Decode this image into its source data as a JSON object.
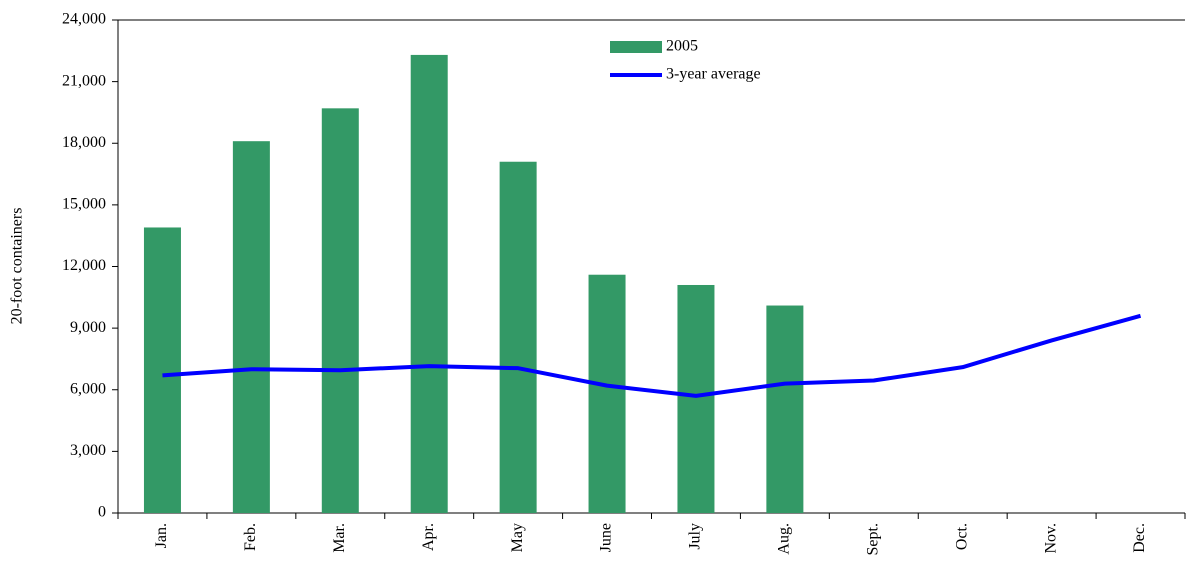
{
  "chart_data": {
    "type": "bar-line",
    "y_label": "20-foot containers",
    "categories": [
      "Jan.",
      "Feb.",
      "Mar.",
      "Apr.",
      "May",
      "June",
      "July",
      "Aug.",
      "Sept.",
      "Oct.",
      "Nov.",
      "Dec."
    ],
    "series": [
      {
        "name": "2005",
        "type": "bar",
        "color": "#339966",
        "values": [
          13900,
          18100,
          19700,
          22300,
          17100,
          11600,
          11100,
          10100,
          null,
          null,
          null,
          null
        ]
      },
      {
        "name": "3-year average",
        "type": "line",
        "color": "#0000ff",
        "values": [
          6700,
          7000,
          6950,
          7150,
          7050,
          6200,
          5700,
          6300,
          6450,
          7100,
          8400,
          9600
        ]
      }
    ],
    "ylim": [
      0,
      24000
    ],
    "yticks": [
      {
        "value": 0,
        "label": "0"
      },
      {
        "value": 3000,
        "label": "3,000"
      },
      {
        "value": 6000,
        "label": "6,000"
      },
      {
        "value": 9000,
        "label": "9,000"
      },
      {
        "value": 12000,
        "label": "12,000"
      },
      {
        "value": 15000,
        "label": "15,000"
      },
      {
        "value": 18000,
        "label": "18,000"
      },
      {
        "value": 21000,
        "label": "21,000"
      },
      {
        "value": 24000,
        "label": "24,000"
      }
    ],
    "grid": false,
    "legend": "top-center"
  }
}
